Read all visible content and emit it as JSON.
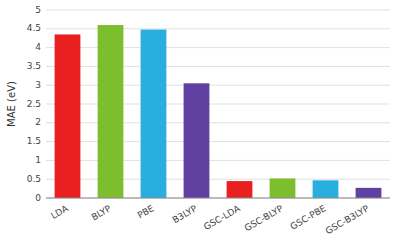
{
  "chart_data": {
    "type": "bar",
    "categories": [
      "LDA",
      "BLYP",
      "PBE",
      "B3LYP",
      "GSC-LDA",
      "GSC-BLYP",
      "GSC-PBE",
      "GSC-B3LYP"
    ],
    "values": [
      4.35,
      4.6,
      4.48,
      3.05,
      0.45,
      0.52,
      0.47,
      0.27
    ],
    "colors": [
      "#e82020",
      "#7dbe2e",
      "#29aee0",
      "#6040a0",
      "#e82020",
      "#7dbe2e",
      "#29aee0",
      "#6040a0"
    ],
    "ylabel": "MAE (eV)",
    "ylim": [
      0,
      5
    ],
    "yticks": [
      0,
      0.5,
      1,
      1.5,
      2,
      2.5,
      3,
      3.5,
      4,
      4.5,
      5
    ],
    "grid": true
  }
}
